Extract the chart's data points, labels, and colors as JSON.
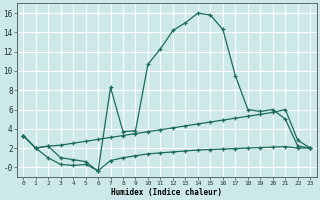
{
  "title": "",
  "xlabel": "Humidex (Indice chaleur)",
  "bg_color": "#cce8e8",
  "grid_color": "#ffffff",
  "line_color": "#1a6b5a",
  "x": [
    0,
    1,
    2,
    3,
    4,
    5,
    6,
    7,
    8,
    9,
    10,
    11,
    12,
    13,
    14,
    15,
    16,
    17,
    18,
    19,
    20,
    21,
    22,
    23
  ],
  "y_main": [
    3.3,
    2.0,
    2.2,
    1.0,
    0.8,
    0.6,
    -0.4,
    8.3,
    3.7,
    3.8,
    10.7,
    12.3,
    14.2,
    15.0,
    16.0,
    15.8,
    14.3,
    9.5,
    6.0,
    5.8,
    6.0,
    5.0,
    2.2,
    2.0
  ],
  "y_upper": [
    3.3,
    2.0,
    2.2,
    2.3,
    2.5,
    2.7,
    2.9,
    3.1,
    3.3,
    3.5,
    3.7,
    3.9,
    4.1,
    4.3,
    4.5,
    4.7,
    4.9,
    5.1,
    5.3,
    5.5,
    5.7,
    6.0,
    2.8,
    2.0
  ],
  "y_lower": [
    3.3,
    2.0,
    1.0,
    0.3,
    0.2,
    0.3,
    -0.35,
    0.7,
    1.0,
    1.2,
    1.4,
    1.5,
    1.6,
    1.7,
    1.8,
    1.85,
    1.9,
    1.95,
    2.0,
    2.05,
    2.1,
    2.15,
    2.0,
    2.0
  ],
  "ylim": [
    -1.0,
    17.0
  ],
  "xlim": [
    -0.5,
    23.5
  ],
  "ytick_vals": [
    0,
    2,
    4,
    6,
    8,
    10,
    12,
    14,
    16
  ],
  "ytick_labels": [
    "-0",
    "2",
    "4",
    "6",
    "8",
    "10",
    "12",
    "14",
    "16"
  ],
  "xtick_vals": [
    0,
    1,
    2,
    3,
    4,
    5,
    6,
    7,
    8,
    9,
    10,
    11,
    12,
    13,
    14,
    15,
    16,
    17,
    18,
    19,
    20,
    21,
    22,
    23
  ],
  "xtick_labels": [
    "0",
    "1",
    "2",
    "3",
    "4",
    "5",
    "6",
    "7",
    "8",
    "9",
    "10",
    "11",
    "12",
    "13",
    "14",
    "15",
    "16",
    "17",
    "18",
    "19",
    "20",
    "21",
    "22",
    "23"
  ]
}
